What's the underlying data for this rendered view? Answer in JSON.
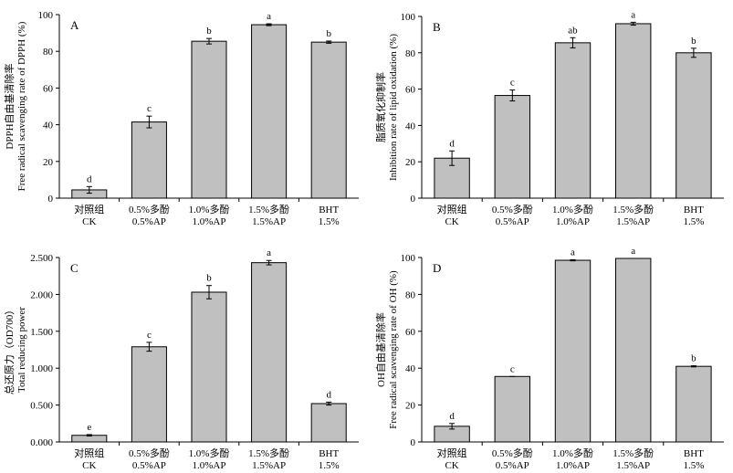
{
  "chart_data": [
    {
      "id": "A",
      "type": "bar",
      "panel_label": "A",
      "categories": [
        {
          "line1": "对照组",
          "line2": "CK"
        },
        {
          "line1": "0.5%多酚",
          "line2": "0.5%AP"
        },
        {
          "line1": "1.0%多酚",
          "line2": "1.0%AP"
        },
        {
          "line1": "1.5%多酚",
          "line2": "1.5%AP"
        },
        {
          "line1": "BHT",
          "line2": "1.5%"
        }
      ],
      "values": [
        4.5,
        41.5,
        85.5,
        94.5,
        85.0
      ],
      "errors": [
        1.8,
        3.2,
        1.5,
        0.5,
        0.6
      ],
      "significance": [
        "d",
        "c",
        "b",
        "a",
        "b"
      ],
      "ylim": [
        0,
        100
      ],
      "yticks": [
        0,
        20,
        40,
        60,
        80,
        100
      ],
      "ytick_labels": [
        "0",
        "20",
        "40",
        "60",
        "80",
        "100"
      ],
      "ylabel_line1": "DPPH自由基清除率",
      "ylabel_line2": "Free radical scavenging rate of DPPH (%)"
    },
    {
      "id": "B",
      "type": "bar",
      "panel_label": "B",
      "categories": [
        {
          "line1": "对照组",
          "line2": "CK"
        },
        {
          "line1": "0.5%多酚",
          "line2": "0.5%AP"
        },
        {
          "line1": "1.0%多酚",
          "line2": "1.0%AP"
        },
        {
          "line1": "1.5%多酚",
          "line2": "1.5%AP"
        },
        {
          "line1": "BHT",
          "line2": "1.5%"
        }
      ],
      "values": [
        22.0,
        56.5,
        85.5,
        96.0,
        80.0
      ],
      "errors": [
        4.0,
        3.0,
        2.8,
        0.8,
        2.5
      ],
      "significance": [
        "d",
        "c",
        "ab",
        "a",
        "b"
      ],
      "ylim": [
        0,
        100
      ],
      "yticks": [
        0,
        20,
        40,
        60,
        80,
        100
      ],
      "ytick_labels": [
        "0",
        "20",
        "40",
        "60",
        "80",
        "100"
      ],
      "ylabel_line1": "脂质氧化抑制率",
      "ylabel_line2": "Inhibition rate of lipid oxidation (%)"
    },
    {
      "id": "C",
      "type": "bar",
      "panel_label": "C",
      "categories": [
        {
          "line1": "对照组",
          "line2": "CK"
        },
        {
          "line1": "0.5%多酚",
          "line2": "0.5%AP"
        },
        {
          "line1": "1.0%多酚",
          "line2": "1.0%AP"
        },
        {
          "line1": "1.5%多酚",
          "line2": "1.5%AP"
        },
        {
          "line1": "BHT",
          "line2": "1.5%"
        }
      ],
      "values": [
        0.09,
        1.29,
        2.03,
        2.43,
        0.52
      ],
      "errors": [
        0.01,
        0.06,
        0.09,
        0.03,
        0.02
      ],
      "significance": [
        "e",
        "c",
        "b",
        "a",
        "d"
      ],
      "ylim": [
        0,
        2.5
      ],
      "yticks": [
        0,
        0.5,
        1.0,
        1.5,
        2.0,
        2.5
      ],
      "ytick_labels": [
        "0.000",
        "0.500",
        "1.000",
        "1.500",
        "2.000",
        "2.500"
      ],
      "ylabel_line1": "总还原力（OD700）",
      "ylabel_line2": "Total reducing power"
    },
    {
      "id": "D",
      "type": "bar",
      "panel_label": "D",
      "categories": [
        {
          "line1": "对照组",
          "line2": "CK"
        },
        {
          "line1": "0.5%多酚",
          "line2": "0.5%AP"
        },
        {
          "line1": "1.0%多酚",
          "line2": "1.0%AP"
        },
        {
          "line1": "1.5%多酚",
          "line2": "1.5%AP"
        },
        {
          "line1": "BHT",
          "line2": "1.5%"
        }
      ],
      "values": [
        8.5,
        35.5,
        98.5,
        99.5,
        41.0
      ],
      "errors": [
        1.5,
        0.0,
        0.3,
        0.0,
        0.3
      ],
      "significance": [
        "d",
        "c",
        "a",
        "a",
        "b"
      ],
      "ylim": [
        0,
        100
      ],
      "yticks": [
        0,
        20,
        40,
        60,
        80,
        100
      ],
      "ytick_labels": [
        "0",
        "20",
        "40",
        "60",
        "80",
        "100"
      ],
      "ylabel_line1": "OH自由基清除率",
      "ylabel_line2": "Free radical scavenging rate of OH (%)"
    }
  ]
}
